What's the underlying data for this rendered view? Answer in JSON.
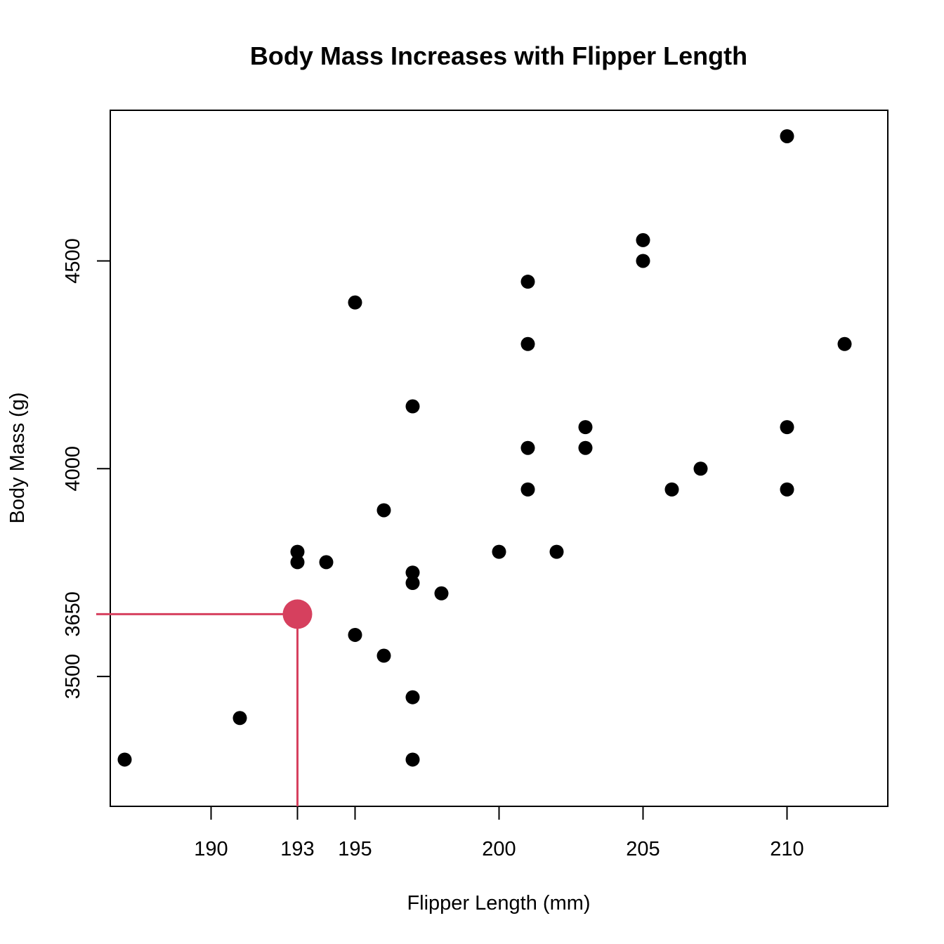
{
  "chart_data": {
    "type": "scatter",
    "title": "Body Mass Increases with Flipper Length",
    "xlabel": "Flipper Length (mm)",
    "ylabel": "Body Mass (g)",
    "xlim": [
      186.5,
      213.5
    ],
    "ylim": [
      3187.5,
      4862.5
    ],
    "xticks": [
      190,
      193,
      195,
      200,
      205,
      210
    ],
    "yticks": [
      3500,
      3650,
      4000,
      4500
    ],
    "point_color": "#000000",
    "highlight_color": "#D6405E",
    "points": [
      {
        "x": 187,
        "y": 3300
      },
      {
        "x": 191,
        "y": 3400
      },
      {
        "x": 193,
        "y": 3775
      },
      {
        "x": 193,
        "y": 3800
      },
      {
        "x": 194,
        "y": 3775
      },
      {
        "x": 195,
        "y": 4400
      },
      {
        "x": 195,
        "y": 3600
      },
      {
        "x": 196,
        "y": 3900
      },
      {
        "x": 196,
        "y": 3550
      },
      {
        "x": 197,
        "y": 4150
      },
      {
        "x": 197,
        "y": 3750
      },
      {
        "x": 197,
        "y": 3725
      },
      {
        "x": 197,
        "y": 3450
      },
      {
        "x": 197,
        "y": 3300
      },
      {
        "x": 198,
        "y": 3700
      },
      {
        "x": 200,
        "y": 3800
      },
      {
        "x": 201,
        "y": 4450
      },
      {
        "x": 201,
        "y": 4300
      },
      {
        "x": 201,
        "y": 4050
      },
      {
        "x": 201,
        "y": 3950
      },
      {
        "x": 202,
        "y": 3800
      },
      {
        "x": 203,
        "y": 4100
      },
      {
        "x": 203,
        "y": 4050
      },
      {
        "x": 205,
        "y": 4550
      },
      {
        "x": 205,
        "y": 4500
      },
      {
        "x": 206,
        "y": 3950
      },
      {
        "x": 207,
        "y": 4000
      },
      {
        "x": 210,
        "y": 4800
      },
      {
        "x": 210,
        "y": 4100
      },
      {
        "x": 210,
        "y": 3950
      },
      {
        "x": 212,
        "y": 4300
      }
    ],
    "highlight": {
      "x": 193,
      "y": 3650
    }
  }
}
